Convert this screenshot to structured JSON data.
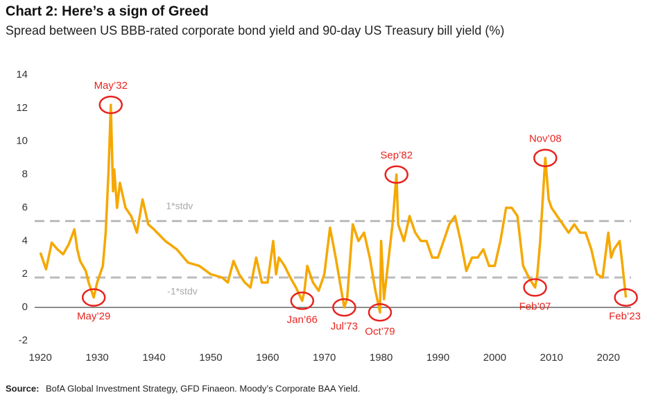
{
  "chart_data": {
    "type": "line",
    "title": "Chart 2: Here’s a sign of Greed",
    "subtitle": "Spread between US BBB-rated corporate bond yield and 90-day US Treasury bill yield (%)",
    "source_label": "Source:",
    "source": "BofA Global Investment Strategy, GFD Finaeon.  Moody’s Corporate BAA Yield.",
    "color": "#f5a800",
    "x": [
      1920,
      1921,
      1922,
      1923,
      1924,
      1925,
      1926,
      1926.5,
      1927,
      1928,
      1928.5,
      1929.4,
      1930,
      1931,
      1931.5,
      1932,
      1932.4,
      1932.8,
      1933,
      1933.5,
      1934,
      1935,
      1936,
      1937,
      1938,
      1939,
      1940,
      1942,
      1944,
      1946,
      1948,
      1950,
      1952,
      1953,
      1954,
      1955,
      1956,
      1957,
      1958,
      1959,
      1960,
      1961,
      1961.5,
      1962,
      1963,
      1964,
      1965,
      1966.1,
      1966.5,
      1967,
      1968,
      1969,
      1970,
      1971,
      1972,
      1973,
      1973.5,
      1974,
      1975,
      1976,
      1977,
      1978,
      1979,
      1979.8,
      1980,
      1980.5,
      1981,
      1982,
      1982.7,
      1983,
      1984,
      1985,
      1986,
      1987,
      1988,
      1989,
      1990,
      1991,
      1992,
      1993,
      1994,
      1995,
      1996,
      1997,
      1998,
      1999,
      2000,
      2001,
      2002,
      2003,
      2004,
      2005,
      2006,
      2007.1,
      2007.5,
      2008,
      2008.9,
      2009.5,
      2010,
      2011,
      2012,
      2013,
      2014,
      2015,
      2016,
      2017,
      2018,
      2019,
      2020,
      2020.5,
      2021,
      2022,
      2022.5,
      2023.1
    ],
    "values": [
      3.3,
      2.3,
      3.9,
      3.5,
      3.2,
      3.8,
      4.7,
      3.5,
      2.8,
      2.2,
      1.5,
      0.6,
      1.5,
      2.5,
      4.5,
      8.2,
      12.2,
      7,
      8.3,
      6,
      7.5,
      6,
      5.5,
      4.5,
      6.5,
      5,
      4.7,
      4,
      3.5,
      2.7,
      2.5,
      2,
      1.8,
      1.5,
      2.8,
      2,
      1.5,
      1.2,
      3,
      1.5,
      1.5,
      4,
      2,
      3,
      2.5,
      1.8,
      1.2,
      0.4,
      1,
      2.5,
      1.5,
      1,
      2,
      4.8,
      3,
      1,
      0,
      0.5,
      5,
      4,
      4.5,
      3,
      1,
      -0.3,
      4,
      0.5,
      2,
      5,
      8,
      5,
      4,
      5.5,
      4.5,
      4,
      4,
      3,
      3,
      4,
      5,
      5.5,
      4,
      2.2,
      3,
      3,
      3.5,
      2.5,
      2.5,
      4,
      6,
      6,
      5.5,
      2.5,
      1.8,
      1.2,
      2,
      4,
      9,
      6.5,
      6,
      5.5,
      5,
      4.5,
      5,
      4.5,
      4.5,
      3.5,
      2,
      1.8,
      4.5,
      3,
      3.5,
      4,
      2.5,
      0.6
    ],
    "xlim": [
      1919,
      2024
    ],
    "ylim": [
      -2,
      14
    ],
    "xticks": [
      1920,
      1930,
      1940,
      1950,
      1960,
      1970,
      1980,
      1990,
      2000,
      2010,
      2020
    ],
    "yticks": [
      -2,
      0,
      2,
      4,
      6,
      8,
      10,
      12,
      14
    ],
    "reference_lines": [
      {
        "label": "1*stdv",
        "value": 5.2,
        "x": 1944.5
      },
      {
        "label": "-1*stdv",
        "value": 1.8,
        "x": 1945
      }
    ],
    "annotations": [
      {
        "label": "May’32",
        "x": 1932.4,
        "y": 12.2,
        "position": "above"
      },
      {
        "label": "May’29",
        "x": 1929.4,
        "y": 0.6,
        "position": "below"
      },
      {
        "label": "Jan’66",
        "x": 1966.1,
        "y": 0.4,
        "position": "below"
      },
      {
        "label": "Jul’73",
        "x": 1973.5,
        "y": 0,
        "position": "below"
      },
      {
        "label": "Oct’79",
        "x": 1979.8,
        "y": -0.3,
        "position": "below"
      },
      {
        "label": "Sep’82",
        "x": 1982.7,
        "y": 8,
        "position": "above"
      },
      {
        "label": "Nov’08",
        "x": 2008.9,
        "y": 9,
        "position": "above"
      },
      {
        "label": "Feb’07",
        "x": 2007.1,
        "y": 1.2,
        "position": "below"
      },
      {
        "label": "Feb’23",
        "x": 2023.1,
        "y": 0.6,
        "position": "below"
      }
    ]
  }
}
